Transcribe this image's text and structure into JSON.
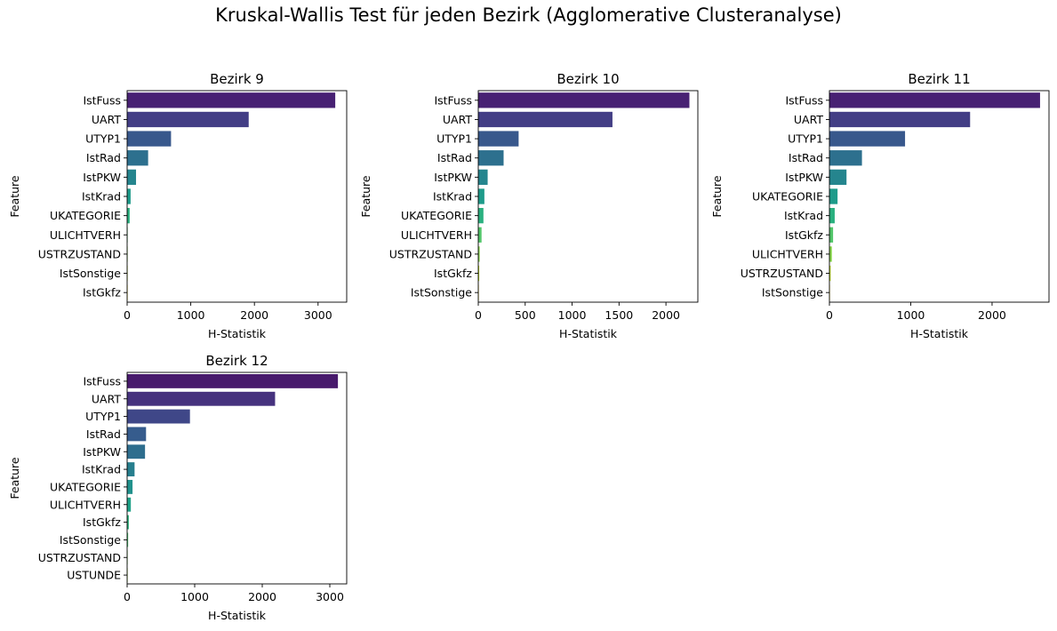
{
  "suptitle": "Kruskal-Wallis Test für jeden Bezirk (Agglomerative Clusteranalyse)",
  "colors": {
    "palette": "viridis",
    "axis": "#000000",
    "background": "#ffffff"
  },
  "chart_data": [
    {
      "type": "bar",
      "orientation": "horizontal",
      "title": "Bezirk 9",
      "xlabel": "H-Statistik",
      "ylabel": "Feature",
      "xlim": [
        0,
        3450
      ],
      "xticks": [
        0,
        1000,
        2000,
        3000
      ],
      "grid": false,
      "categories": [
        "IstFuss",
        "UART",
        "UTYP1",
        "IstRad",
        "IstPKW",
        "IstKrad",
        "UKATEGORIE",
        "ULICHTVERH",
        "USTRZUSTAND",
        "IstSonstige",
        "IstGkfz"
      ],
      "values": [
        3270,
        1910,
        690,
        330,
        140,
        55,
        40,
        5,
        3,
        2,
        1
      ],
      "colors": [
        "#482173",
        "#433e85",
        "#38588c",
        "#2d708e",
        "#25858e",
        "#1e9b8a",
        "#2ab07f",
        "#52c569",
        "#86d549",
        "#c2df23",
        "#fde725"
      ]
    },
    {
      "type": "bar",
      "orientation": "horizontal",
      "title": "Bezirk 10",
      "xlabel": "H-Statistik",
      "ylabel": "Feature",
      "xlim": [
        0,
        2340
      ],
      "xticks": [
        0,
        500,
        1000,
        1500,
        2000
      ],
      "grid": false,
      "categories": [
        "IstFuss",
        "UART",
        "UTYP1",
        "IstRad",
        "IstPKW",
        "IstKrad",
        "UKATEGORIE",
        "ULICHTVERH",
        "USTRZUSTAND",
        "IstGkfz",
        "IstSonstige"
      ],
      "values": [
        2250,
        1430,
        430,
        270,
        100,
        65,
        55,
        35,
        15,
        10,
        3
      ],
      "colors": [
        "#482173",
        "#433e85",
        "#38588c",
        "#2d708e",
        "#25858e",
        "#1e9b8a",
        "#2ab07f",
        "#52c569",
        "#86d549",
        "#c2df23",
        "#fde725"
      ]
    },
    {
      "type": "bar",
      "orientation": "horizontal",
      "title": "Bezirk 11",
      "xlabel": "H-Statistik",
      "ylabel": "Feature",
      "xlim": [
        0,
        2700
      ],
      "xticks": [
        0,
        1000,
        2000
      ],
      "grid": false,
      "categories": [
        "IstFuss",
        "UART",
        "UTYP1",
        "IstRad",
        "IstPKW",
        "UKATEGORIE",
        "IstKrad",
        "IstGkfz",
        "ULICHTVERH",
        "USTRZUSTAND",
        "IstSonstige"
      ],
      "values": [
        2590,
        1730,
        930,
        400,
        210,
        100,
        65,
        45,
        30,
        15,
        5
      ],
      "colors": [
        "#482173",
        "#433e85",
        "#38588c",
        "#2d708e",
        "#25858e",
        "#1e9b8a",
        "#2ab07f",
        "#52c569",
        "#86d549",
        "#c2df23",
        "#fde725"
      ]
    },
    {
      "type": "bar",
      "orientation": "horizontal",
      "title": "Bezirk 12",
      "xlabel": "H-Statistik",
      "ylabel": "Feature",
      "xlim": [
        0,
        3250
      ],
      "xticks": [
        0,
        1000,
        2000,
        3000
      ],
      "grid": false,
      "categories": [
        "IstFuss",
        "UART",
        "UTYP1",
        "IstRad",
        "IstPKW",
        "IstKrad",
        "UKATEGORIE",
        "ULICHTVERH",
        "IstGkfz",
        "IstSonstige",
        "USTRZUSTAND",
        "USTUNDE"
      ],
      "values": [
        3120,
        2190,
        930,
        280,
        265,
        110,
        80,
        55,
        25,
        15,
        5,
        2
      ],
      "colors": [
        "#481a6c",
        "#46327e",
        "#3f4788",
        "#365c8d",
        "#2e6e8e",
        "#277f8e",
        "#21918c",
        "#1fa187",
        "#2db27d",
        "#4ac16d",
        "#73d056",
        "#a0da39"
      ]
    }
  ]
}
